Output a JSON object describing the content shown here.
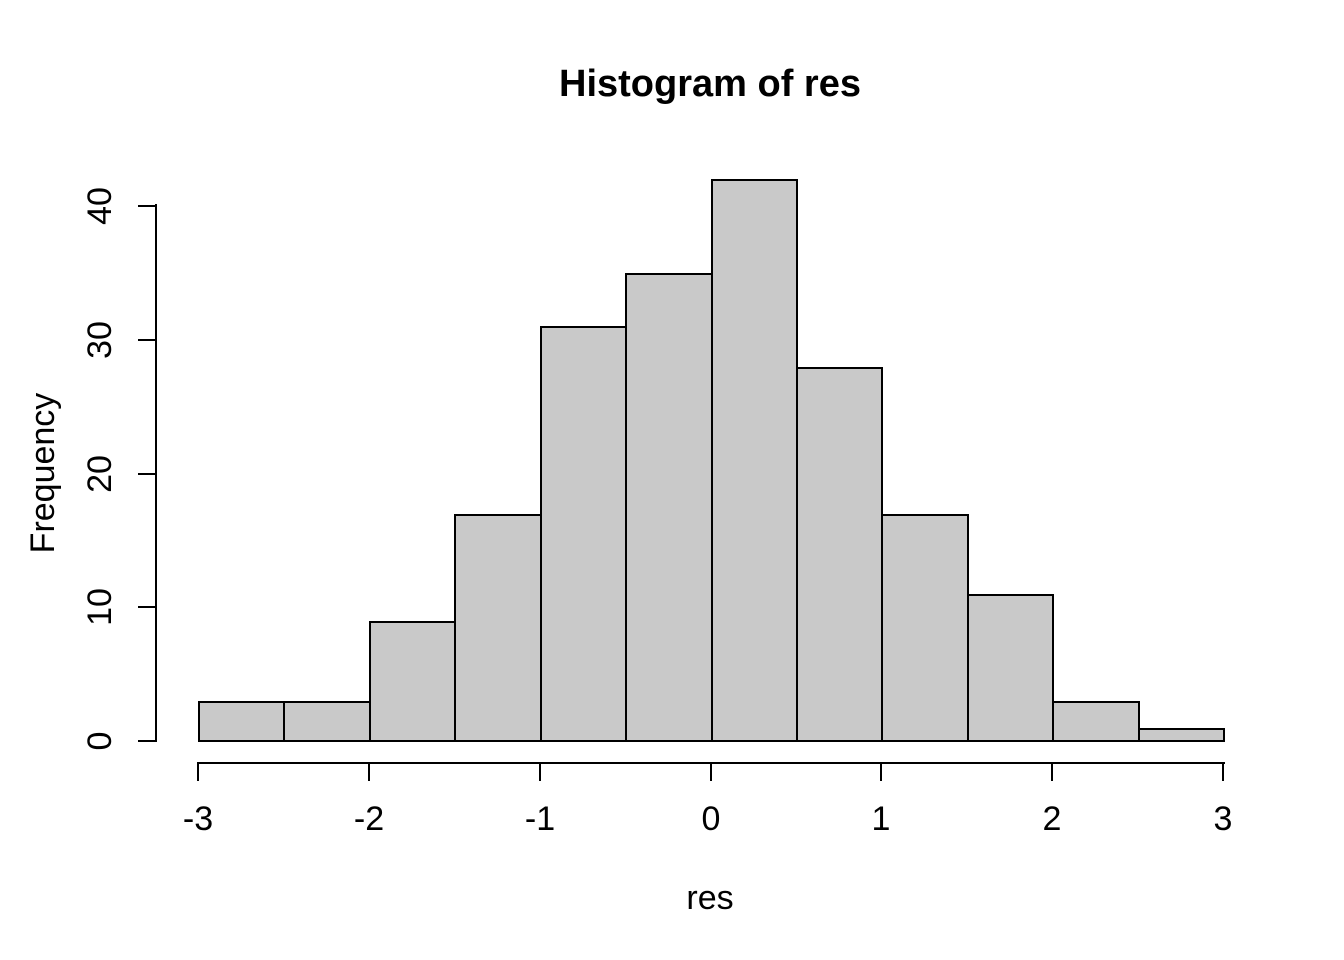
{
  "figure": {
    "background": "#FFFFFF"
  },
  "chart_data": {
    "type": "bar",
    "chart_kind": "histogram",
    "title": "Histogram of res",
    "xlabel": "res",
    "ylabel": "Frequency",
    "bin_edges": [
      -3,
      -2.5,
      -2,
      -1.5,
      -1,
      -0.5,
      0,
      0.5,
      1,
      1.5,
      2,
      2.5,
      3
    ],
    "counts": [
      3,
      3,
      9,
      17,
      31,
      35,
      42,
      28,
      17,
      11,
      3,
      1
    ],
    "x_ticks": [
      "-3",
      "-2",
      "-1",
      "0",
      "1",
      "2",
      "3"
    ],
    "x_tick_values": [
      -3,
      -2,
      -1,
      0,
      1,
      2,
      3
    ],
    "y_ticks": [
      "0",
      "10",
      "20",
      "30",
      "40"
    ],
    "y_tick_values": [
      0,
      10,
      20,
      30,
      40
    ],
    "xlim": [
      -3,
      3
    ],
    "ylim": [
      0,
      40
    ],
    "grid": false,
    "legend_position": "none",
    "bar_fill": "#C9C9C9",
    "bar_stroke": "#000000",
    "axis_color": "#000000",
    "text_color": "#000000"
  }
}
